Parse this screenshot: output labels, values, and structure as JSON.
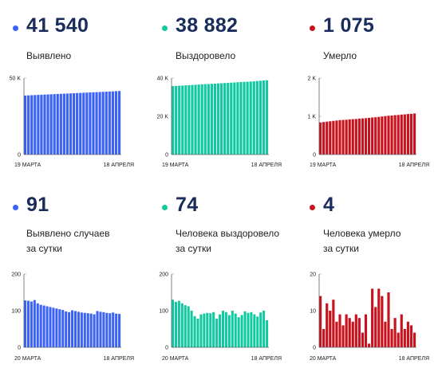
{
  "panels": [
    {
      "value": "41 540",
      "label_lines": [
        "Выявлено"
      ],
      "color": "#3b62f5"
    },
    {
      "value": "38 882",
      "label_lines": [
        "Выздоровело"
      ],
      "color": "#10c9a0"
    },
    {
      "value": "1 075",
      "label_lines": [
        "Умерло"
      ],
      "color": "#c8121e"
    },
    {
      "value": "91",
      "label_lines": [
        "Выявлено случаев",
        "за сутки"
      ],
      "color": "#3b62f5"
    },
    {
      "value": "74",
      "label_lines": [
        "Человека выздоровело",
        "за сутки"
      ],
      "color": "#10c9a0"
    },
    {
      "value": "4",
      "label_lines": [
        "Человека умерло",
        "за сутки"
      ],
      "color": "#c8121e"
    }
  ],
  "chart_data": [
    {
      "type": "bar",
      "title": "Выявлено",
      "ylim": [
        0,
        50000
      ],
      "yticks": [
        {
          "v": 0,
          "label": "0"
        },
        {
          "v": 50000,
          "label": "50 K"
        }
      ],
      "xtick_labels": [
        "19 МАРТА",
        "18 АПРЕЛЯ"
      ],
      "values": [
        38600,
        38700,
        38800,
        38900,
        39000,
        39100,
        39200,
        39300,
        39400,
        39500,
        39600,
        39700,
        39800,
        39900,
        40000,
        40100,
        40200,
        40300,
        40400,
        40500,
        40600,
        40700,
        40800,
        40900,
        41000,
        41100,
        41200,
        41300,
        41450,
        41540
      ],
      "color": "#3b62f5"
    },
    {
      "type": "bar",
      "title": "Выздоровело",
      "ylim": [
        0,
        40000
      ],
      "yticks": [
        {
          "v": 0,
          "label": "0"
        },
        {
          "v": 20000,
          "label": "20 K"
        },
        {
          "v": 40000,
          "label": "40 K"
        }
      ],
      "xtick_labels": [
        "19 МАРТА",
        "18 АПРЕЛЯ"
      ],
      "values": [
        35800,
        35900,
        36000,
        36100,
        36200,
        36300,
        36400,
        36500,
        36600,
        36700,
        36800,
        36900,
        37000,
        37100,
        37200,
        37300,
        37400,
        37500,
        37600,
        37700,
        37800,
        37900,
        38000,
        38100,
        38200,
        38300,
        38450,
        38600,
        38750,
        38882
      ],
      "color": "#10c9a0"
    },
    {
      "type": "bar",
      "title": "Умерло",
      "ylim": [
        0,
        2000
      ],
      "yticks": [
        {
          "v": 0,
          "label": "0"
        },
        {
          "v": 1000,
          "label": "1 K"
        },
        {
          "v": 2000,
          "label": "2 K"
        }
      ],
      "xtick_labels": [
        "19 МАРТА",
        "18 АПРЕЛЯ"
      ],
      "values": [
        840,
        850,
        860,
        870,
        880,
        890,
        900,
        905,
        910,
        920,
        925,
        930,
        940,
        945,
        950,
        960,
        970,
        975,
        985,
        995,
        1005,
        1015,
        1020,
        1030,
        1035,
        1045,
        1050,
        1060,
        1065,
        1075
      ],
      "color": "#c8121e"
    },
    {
      "type": "bar",
      "title": "Выявлено случаев за сутки",
      "ylim": [
        0,
        200
      ],
      "yticks": [
        {
          "v": 0,
          "label": "0"
        },
        {
          "v": 100,
          "label": "100"
        },
        {
          "v": 200,
          "label": "200"
        }
      ],
      "xtick_labels": [
        "20 МАРТА",
        "18 АПРЕЛЯ"
      ],
      "values": [
        128,
        127,
        125,
        129,
        120,
        116,
        114,
        112,
        110,
        108,
        106,
        104,
        102,
        98,
        96,
        101,
        99,
        97,
        95,
        94,
        93,
        92,
        90,
        99,
        97,
        96,
        94,
        93,
        95,
        92,
        91
      ],
      "color": "#3b62f5"
    },
    {
      "type": "bar",
      "title": "Человека выздоровело за сутки",
      "ylim": [
        0,
        200
      ],
      "yticks": [
        {
          "v": 0,
          "label": "0"
        },
        {
          "v": 100,
          "label": "100"
        },
        {
          "v": 200,
          "label": "200"
        }
      ],
      "xtick_labels": [
        "20 МАРТА",
        "18 АПРЕЛЯ"
      ],
      "values": [
        130,
        124,
        127,
        120,
        115,
        112,
        100,
        85,
        78,
        90,
        92,
        94,
        93,
        96,
        78,
        90,
        100,
        96,
        88,
        100,
        92,
        82,
        88,
        98,
        94,
        96,
        90,
        84,
        95,
        100,
        74
      ],
      "color": "#10c9a0"
    },
    {
      "type": "bar",
      "title": "Человека умерло за сутки",
      "ylim": [
        0,
        20
      ],
      "yticks": [
        {
          "v": 0,
          "label": "0"
        },
        {
          "v": 10,
          "label": "10"
        },
        {
          "v": 20,
          "label": "20"
        }
      ],
      "xtick_labels": [
        "20 МАРТА",
        "18 АПРЕЛЯ"
      ],
      "values": [
        14,
        5,
        12,
        10,
        13,
        7,
        9,
        6,
        9,
        8,
        7,
        9,
        8,
        4,
        9,
        1,
        16,
        11,
        16,
        14,
        7,
        15,
        5,
        8,
        4,
        9,
        5,
        7,
        6,
        4
      ],
      "color": "#c8121e"
    }
  ]
}
